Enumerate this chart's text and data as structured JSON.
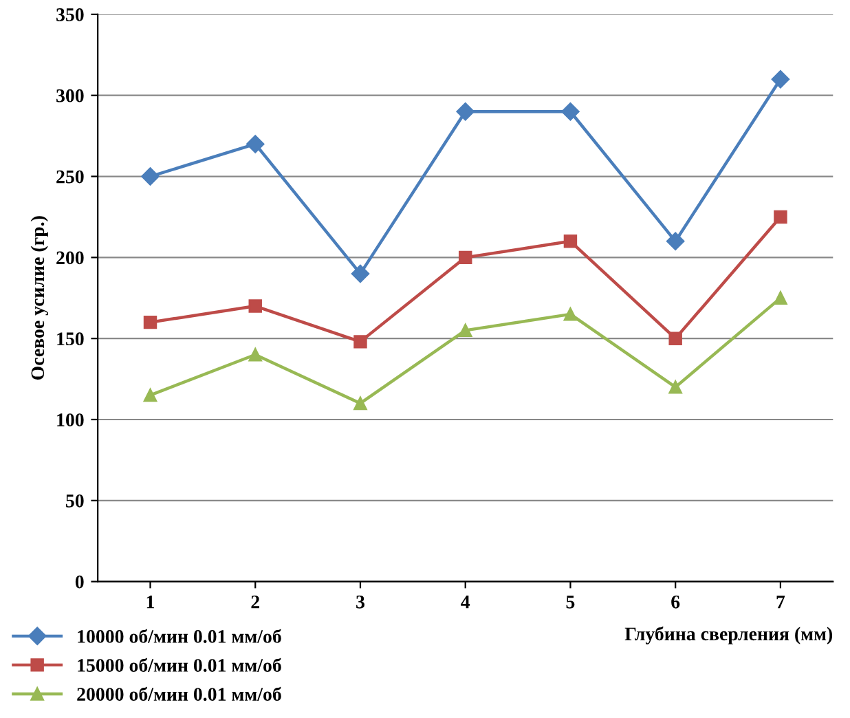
{
  "chart_data": {
    "type": "line",
    "xlabel": "Глубина сверления (мм)",
    "ylabel": "Осевое усилие (гр.)",
    "categories": [
      "1",
      "2",
      "3",
      "4",
      "5",
      "6",
      "7"
    ],
    "series": [
      {
        "name": "10000 об/мин 0.01 мм/об",
        "color": "#4a7ebb",
        "marker": "diamond",
        "values": [
          250,
          270,
          190,
          290,
          290,
          210,
          310
        ]
      },
      {
        "name": "15000 об/мин 0.01 мм/об",
        "color": "#be4b48",
        "marker": "square",
        "values": [
          160,
          170,
          148,
          200,
          210,
          150,
          225
        ]
      },
      {
        "name": "20000 об/мин 0.01 мм/об",
        "color": "#98b954",
        "marker": "triangle",
        "values": [
          115,
          140,
          110,
          155,
          165,
          120,
          175
        ]
      }
    ],
    "ylim": [
      0,
      350
    ],
    "yticks": [
      0,
      50,
      100,
      150,
      200,
      250,
      300,
      350
    ],
    "grid": "y",
    "legend": "bottom left",
    "line_style": "solid"
  }
}
